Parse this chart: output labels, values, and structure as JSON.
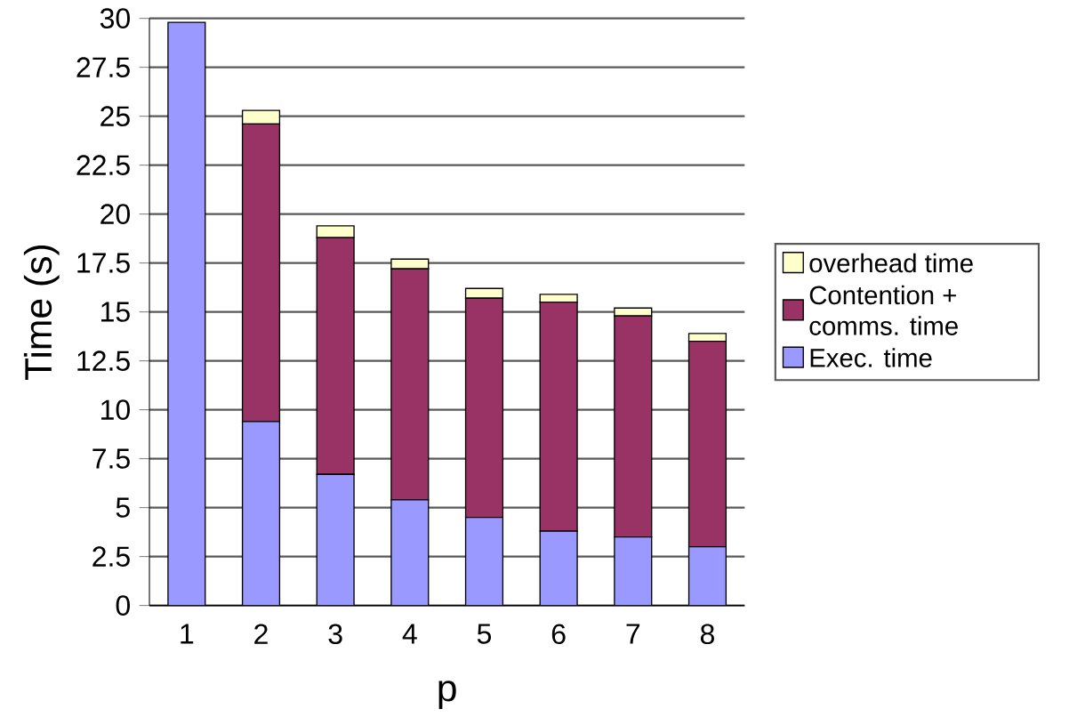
{
  "chart_data": {
    "type": "bar",
    "stacked": true,
    "xlabel": "p",
    "ylabel": "Time (s)",
    "categories": [
      "1",
      "2",
      "3",
      "4",
      "5",
      "6",
      "7",
      "8"
    ],
    "series": [
      {
        "name": "Exec. time",
        "color": "#9999ff",
        "values": [
          29.8,
          9.4,
          6.7,
          5.4,
          4.5,
          3.8,
          3.5,
          3.0
        ]
      },
      {
        "name": "Contention + comms. time",
        "color": "#993366",
        "values": [
          0,
          15.2,
          12.1,
          11.8,
          11.2,
          11.7,
          11.3,
          10.5
        ]
      },
      {
        "name": "overhead time",
        "color": "#ffffcc",
        "values": [
          0,
          0.7,
          0.6,
          0.5,
          0.5,
          0.4,
          0.4,
          0.4
        ]
      }
    ],
    "ylim": [
      0,
      30
    ],
    "yticks": [
      0,
      2.5,
      5,
      7.5,
      10,
      12.5,
      15,
      17.5,
      20,
      22.5,
      25,
      27.5,
      30
    ],
    "grid": "y",
    "legend": "right"
  }
}
